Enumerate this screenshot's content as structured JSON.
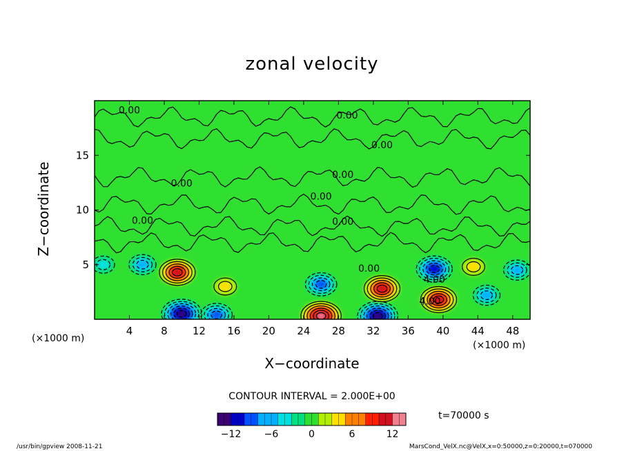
{
  "chart_data": {
    "type": "heatmap",
    "title": "zonal velocity",
    "xlabel": "X−coordinate",
    "ylabel": "Z−coordinate",
    "x_unit": "(×1000 m)",
    "y_unit": "(×1000 m)",
    "xlim": [
      0,
      50
    ],
    "ylim": [
      0,
      20
    ],
    "x_ticks": [
      4,
      8,
      12,
      16,
      20,
      24,
      28,
      32,
      36,
      40,
      44,
      48
    ],
    "y_ticks": [
      5,
      10,
      15
    ],
    "contour_interval_text": "CONTOUR INTERVAL = 2.000E+00",
    "contour_labels": [
      "0.00",
      "0.00",
      "0.00",
      "0.00",
      "0.00",
      "0.00",
      "0.00",
      "0.00",
      "0.00",
      "4.00",
      "4.00"
    ],
    "features": [
      {
        "x": 9.5,
        "z": 4.3,
        "value": 10
      },
      {
        "x": 10.0,
        "z": 0.5,
        "value": -12
      },
      {
        "x": 14.0,
        "z": 0.4,
        "value": -8
      },
      {
        "x": 5.5,
        "z": 5.0,
        "value": -6
      },
      {
        "x": 15.0,
        "z": 3.0,
        "value": 4
      },
      {
        "x": 26.0,
        "z": 3.2,
        "value": -8
      },
      {
        "x": 26.0,
        "z": 0.3,
        "value": 12
      },
      {
        "x": 32.5,
        "z": 0.3,
        "value": -12
      },
      {
        "x": 33.0,
        "z": 2.8,
        "value": 10
      },
      {
        "x": 39.0,
        "z": 4.6,
        "value": -10
      },
      {
        "x": 39.5,
        "z": 1.8,
        "value": 10
      },
      {
        "x": 45.0,
        "z": 2.2,
        "value": -6
      },
      {
        "x": 48.5,
        "z": 4.5,
        "value": -6
      },
      {
        "x": 43.5,
        "z": 4.8,
        "value": 4
      },
      {
        "x": 1.0,
        "z": 5.0,
        "value": -4
      }
    ],
    "colorbar": {
      "min": -14,
      "max": 14,
      "ticks": [
        -12,
        -6,
        0,
        6,
        12
      ],
      "colors": [
        "#3a0070",
        "#0000c8",
        "#0050ff",
        "#00b0ff",
        "#00e0e0",
        "#00e080",
        "#30e030",
        "#b0f000",
        "#ffe000",
        "#ff8000",
        "#ff2000",
        "#d01020",
        "#f08090"
      ]
    },
    "time_label": "t=70000 s"
  },
  "footer": {
    "left": "/usr/bin/gpview   2008-11-21",
    "right": "MarsCond_VelX.nc@VelX,x=0:50000,z=0:20000,t=070000"
  }
}
